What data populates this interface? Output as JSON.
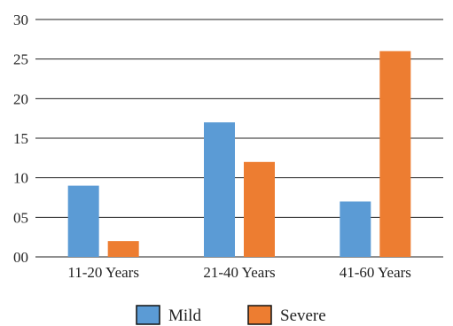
{
  "chart_data": {
    "type": "bar",
    "categories": [
      "11-20 Years",
      "21-40 Years",
      "41-60 Years"
    ],
    "series": [
      {
        "name": "Mild",
        "values": [
          9,
          17,
          7
        ],
        "color": "#5B9BD5"
      },
      {
        "name": "Severe",
        "values": [
          2,
          12,
          26
        ],
        "color": "#ED7D31"
      }
    ],
    "y_tick_labels": [
      "00",
      "05",
      "10",
      "15",
      "20",
      "25",
      "30"
    ],
    "ylim": [
      0,
      30
    ],
    "grid": true,
    "legend_position": "bottom"
  }
}
